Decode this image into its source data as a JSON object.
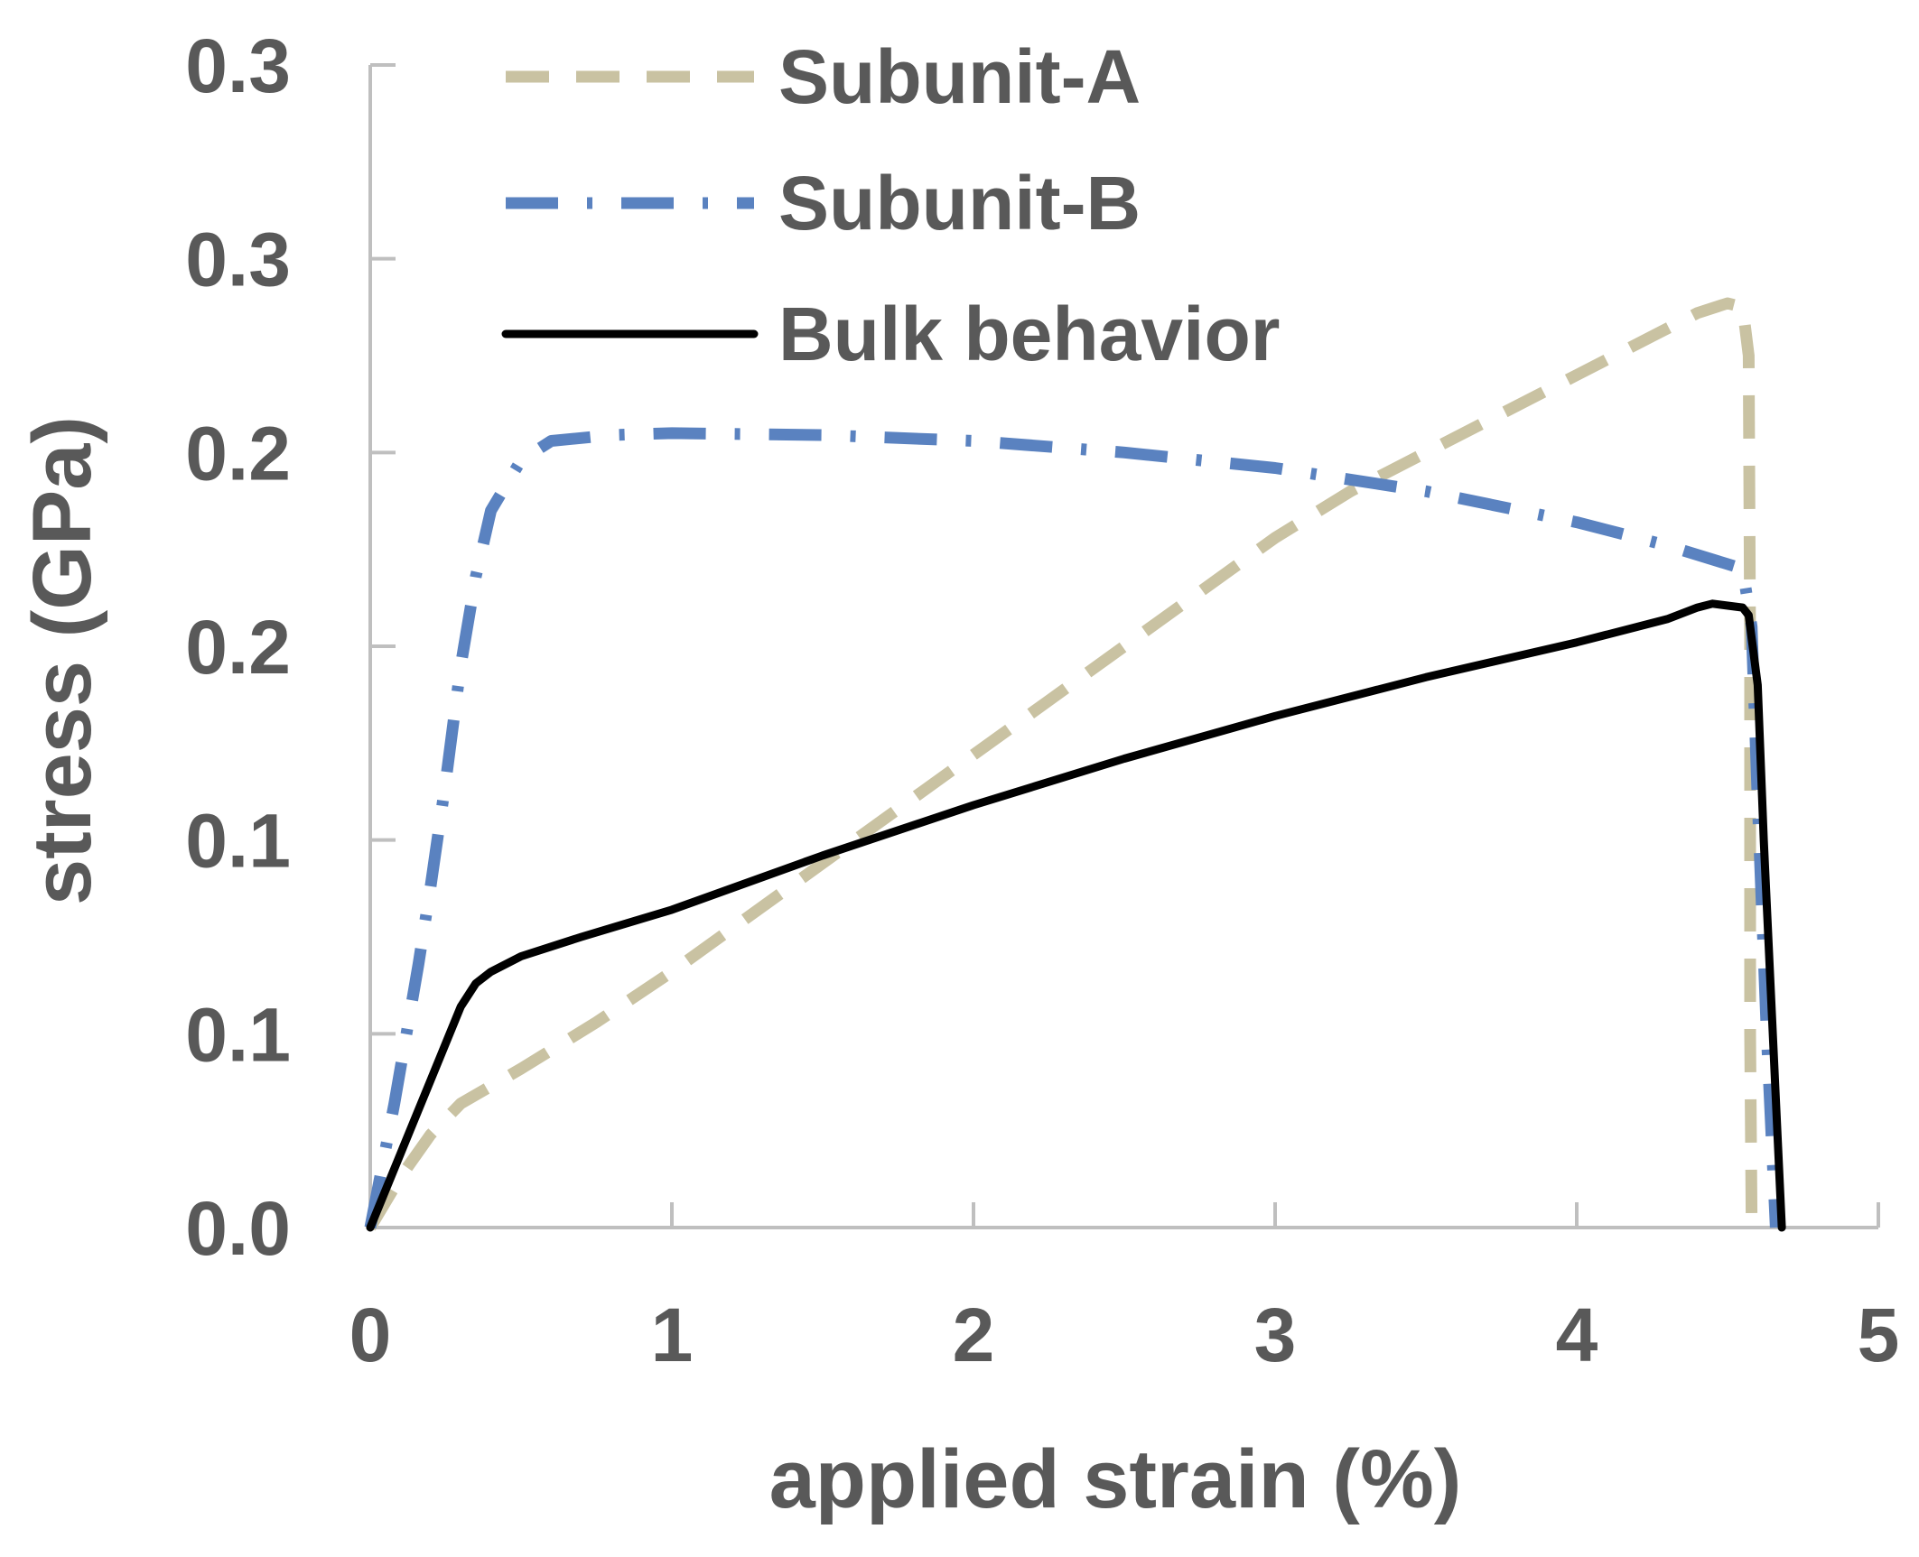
{
  "chart_data": {
    "type": "line",
    "xlabel": "applied strain (%)",
    "ylabel": "stress (GPa)",
    "xlim": [
      0,
      5
    ],
    "ylim": [
      0,
      0.3
    ],
    "x_ticks": [
      0,
      1,
      2,
      3,
      4,
      5
    ],
    "x_tick_labels": [
      "0",
      "1",
      "2",
      "3",
      "4",
      "5"
    ],
    "y_ticks": [
      0,
      0.05,
      0.1,
      0.15,
      0.2,
      0.25,
      0.3
    ],
    "y_tick_labels": [
      "0.0",
      "0.1",
      "0.1",
      "0.2",
      "0.2",
      "0.3",
      "0.3"
    ],
    "grid": false,
    "legend_position": "top-left",
    "series": [
      {
        "name": "Subunit-A",
        "color": "#c9c2a2",
        "style": "dashed",
        "x": [
          0,
          0.1,
          0.2,
          0.3,
          0.5,
          0.75,
          1.0,
          1.25,
          1.5,
          1.75,
          2.0,
          2.25,
          2.5,
          2.75,
          3.0,
          3.25,
          3.5,
          3.75,
          4.0,
          4.25,
          4.4,
          4.5,
          4.55,
          4.57,
          4.575,
          4.575,
          4.58
        ],
        "y": [
          0,
          0.013,
          0.024,
          0.032,
          0.041,
          0.053,
          0.066,
          0.08,
          0.094,
          0.108,
          0.122,
          0.136,
          0.15,
          0.164,
          0.178,
          0.19,
          0.2,
          0.21,
          0.22,
          0.23,
          0.236,
          0.2385,
          0.2375,
          0.225,
          0.15,
          0.05,
          0
        ]
      },
      {
        "name": "Subunit-B",
        "color": "#5a82c0",
        "style": "dash-dot",
        "x": [
          0,
          0.04,
          0.08,
          0.12,
          0.16,
          0.2,
          0.25,
          0.3,
          0.35,
          0.4,
          0.5,
          0.6,
          0.8,
          1.0,
          1.5,
          2.0,
          2.5,
          3.0,
          3.5,
          4.0,
          4.3,
          4.55,
          4.58,
          4.6,
          4.63,
          4.66
        ],
        "y": [
          0,
          0.016,
          0.032,
          0.05,
          0.068,
          0.088,
          0.115,
          0.145,
          0.168,
          0.185,
          0.198,
          0.203,
          0.2045,
          0.205,
          0.2045,
          0.203,
          0.2,
          0.196,
          0.19,
          0.182,
          0.176,
          0.17,
          0.155,
          0.11,
          0.05,
          0
        ]
      },
      {
        "name": "Bulk behavior",
        "color": "#000000",
        "style": "solid",
        "x": [
          0,
          0.1,
          0.2,
          0.3,
          0.35,
          0.4,
          0.5,
          0.7,
          1.0,
          1.5,
          2.0,
          2.5,
          3.0,
          3.5,
          4.0,
          4.3,
          4.4,
          4.45,
          4.55,
          4.57,
          4.6,
          4.62,
          4.65,
          4.68
        ],
        "y": [
          0,
          0.019,
          0.038,
          0.057,
          0.063,
          0.066,
          0.07,
          0.075,
          0.082,
          0.096,
          0.109,
          0.121,
          0.132,
          0.142,
          0.151,
          0.157,
          0.16,
          0.161,
          0.16,
          0.158,
          0.14,
          0.1,
          0.05,
          0
        ]
      }
    ]
  }
}
